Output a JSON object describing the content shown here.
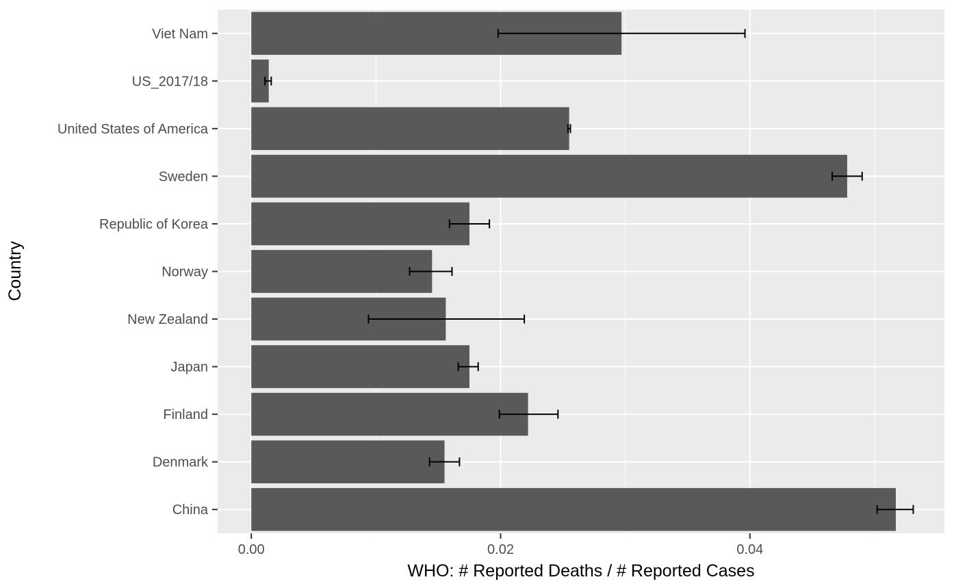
{
  "chart_data": {
    "type": "bar",
    "orientation": "horizontal",
    "xlabel": "WHO: # Reported Deaths / # Reported Cases",
    "ylabel": "Country",
    "xlim": [
      -0.0027,
      0.0556
    ],
    "x_ticks": [
      0.0,
      0.02,
      0.04
    ],
    "x_tick_labels": [
      "0.00",
      "0.02",
      "0.04"
    ],
    "grid": true,
    "legend": "none",
    "categories": [
      "Viet Nam",
      "US_2017/18",
      "United States of America",
      "Sweden",
      "Republic of Korea",
      "Norway",
      "New Zealand",
      "Japan",
      "Finland",
      "Denmark",
      "China"
    ],
    "values": [
      0.0297,
      0.0014,
      0.0255,
      0.0478,
      0.0175,
      0.0145,
      0.0156,
      0.0175,
      0.0222,
      0.0155,
      0.0517
    ],
    "error_low": [
      0.0198,
      0.0011,
      0.0254,
      0.0466,
      0.0159,
      0.0127,
      0.0094,
      0.0166,
      0.0199,
      0.0143,
      0.0502
    ],
    "error_high": [
      0.0396,
      0.0016,
      0.0256,
      0.049,
      0.0191,
      0.0161,
      0.0219,
      0.0182,
      0.0246,
      0.0167,
      0.0531
    ],
    "colors": {
      "panel": "#ebebeb",
      "bar": "#595959",
      "grid": "#ffffff",
      "errorbar": "#000000",
      "tick_text": "#4d4d4d",
      "axis_title": "#000000"
    }
  }
}
